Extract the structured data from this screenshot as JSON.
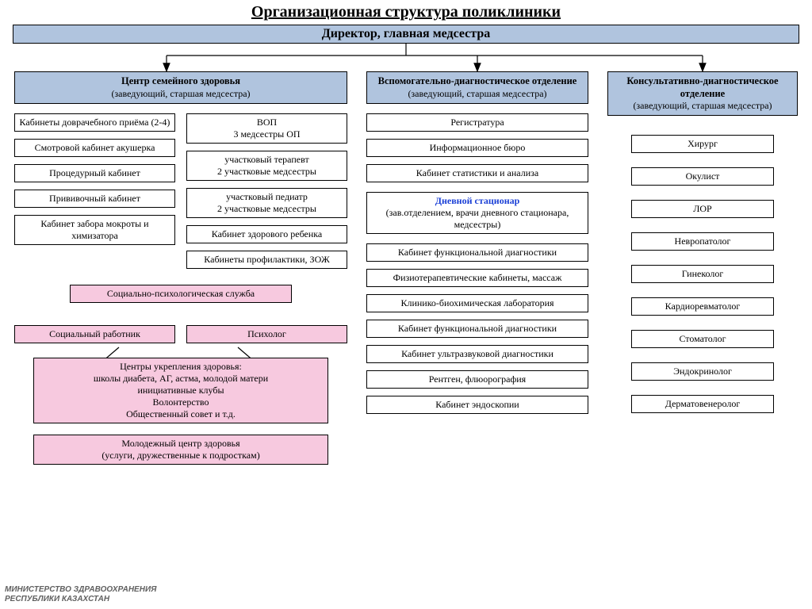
{
  "title": "Организационная структура поликлиники",
  "director": "Директор,   главная медсестра",
  "dept_family": {
    "title": "Центр семейного здоровья",
    "sub": "(заведующий, старшая медсестра)"
  },
  "dept_aux": {
    "title": "Вспомогательно-диагностическое отделение",
    "sub": "(заведующий, старшая медсестра)"
  },
  "dept_cons": {
    "title": "Консультативно-диагностическое отделение",
    "sub": "(заведующий, старшая медсестра)"
  },
  "left_col_a": [
    "Кабинеты доврачебного приёма (2-4)",
    "Смотровой кабинет акушерка",
    "Процедурный кабинет",
    "Прививочный кабинет",
    "Кабинет забора мокроты и химизатора"
  ],
  "left_col_b": [
    "ВОП\n3 медсестры  ОП",
    "участковый терапевт\n2 участковые медсестры",
    "участковый педиатр\n2 участковые медсестры",
    "Кабинет здорового ребенка",
    "Кабинеты профилактики, ЗОЖ"
  ],
  "social_service": "Социально-психологическая служба",
  "social_left": "Социальный работник",
  "social_right": "Психолог",
  "health_centers": "Центры укрепления здоровья:\nшколы диабета, АГ, астма, молодой матери\nинициативные клубы\nВолонтерство\nОбщественный совет  и т.д.",
  "youth_center": "Молодежный  центр здоровья\n(услуги, дружественные к подросткам)",
  "aux_list_top": [
    "Регистратура",
    "Информационное бюро",
    "Кабинет статистики и анализа"
  ],
  "day_hospital_title": "Дневной стационар",
  "day_hospital_sub": "(зав.отделением, врачи дневного стационара, медсестры)",
  "aux_list_bottom": [
    "Кабинет функциональной диагностики",
    "Физиотерапевтические кабинеты, массаж",
    "Клинико-биохимическая лаборатория",
    "Кабинет функциональной диагностики",
    "Кабинет ультразвуковой диагностики",
    "Рентген, флюорография",
    "Кабинет эндоскопии"
  ],
  "cons_list": [
    "Хирург",
    "Окулист",
    "ЛОР",
    "Невропатолог",
    "Гинеколог",
    "Кардиоревматолог",
    "Стоматолог",
    "Эндокринолог",
    "Дерматовенеролог"
  ],
  "footer1": "МИНИСТЕРСТВО ЗДРАВООХРАНЕНИЯ",
  "footer2": "РЕСПУБЛИКИ КАЗАХСТАН",
  "colors": {
    "dept_bg": "#b0c4de",
    "pink_bg": "#f7c9df",
    "border": "#000000",
    "background": "#ffffff",
    "link_blue": "#1a3fd6",
    "footer_gray": "#606060"
  }
}
